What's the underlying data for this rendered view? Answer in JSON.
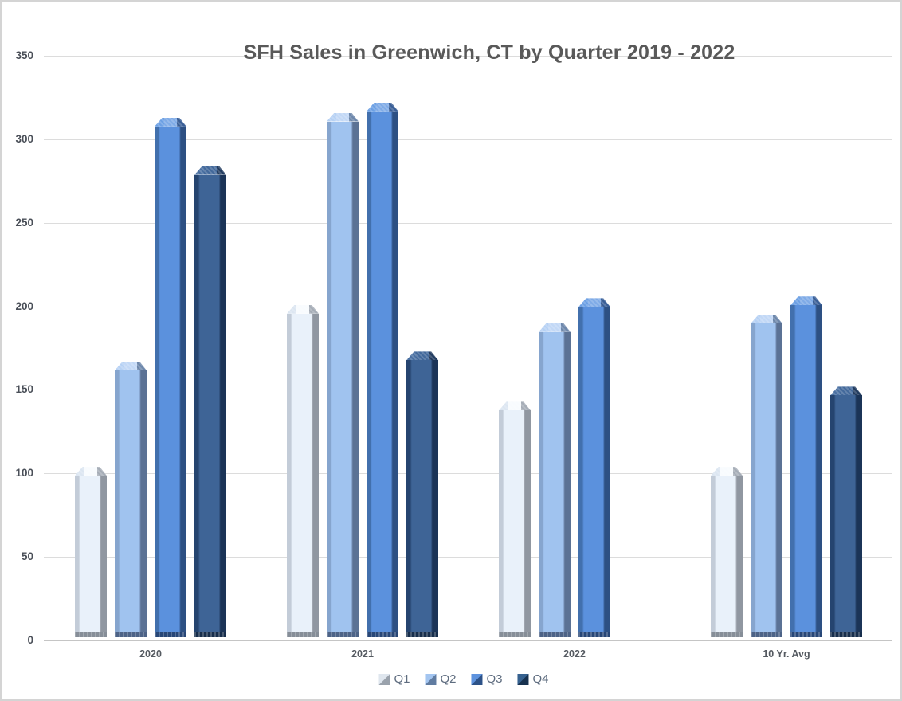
{
  "chart_data": {
    "type": "bar",
    "title": "SFH Sales in Greenwich, CT by Quarter 2019 - 2022",
    "categories": [
      "2020",
      "2021",
      "2022",
      "10 Yr. Avg"
    ],
    "series": [
      {
        "name": "Q1",
        "values": [
          102,
          199,
          141,
          102
        ]
      },
      {
        "name": "Q2",
        "values": [
          165,
          314,
          188,
          193
        ]
      },
      {
        "name": "Q3",
        "values": [
          311,
          320,
          203,
          204
        ]
      },
      {
        "name": "Q4",
        "values": [
          282,
          171,
          null,
          150
        ]
      }
    ],
    "xlabel": "",
    "ylabel": "",
    "ylim": [
      0,
      350
    ],
    "yticks": [
      0,
      50,
      100,
      150,
      200,
      250,
      300,
      350
    ],
    "grid": true,
    "legend_position": "bottom",
    "colors": {
      "gridline": "#dcdcdc",
      "axis_line": "#c5c5c5",
      "title_text": "#595959",
      "tick_text": "#4a4f58",
      "legend_text": "#5e6c7f",
      "series": {
        "Q1": {
          "face": "#e9f1fa",
          "left": "#c3ccd8",
          "right": "#9097a1",
          "cap_left": "#dce6f1",
          "cap_mid": "#f8fbfe",
          "cap_right": "#a6adb7",
          "base": "#868e98",
          "legend_light": "#dfe6ee",
          "legend_dark": "#9aa2ac"
        },
        "Q2": {
          "face": "#a0c3ef",
          "left": "#86a5ce",
          "right": "#5b7295",
          "cap_left": "#b6d1f4",
          "cap_mid": "#c2d8f6",
          "cap_right": "#6d87ab",
          "base": "#4d6387",
          "legend_light": "#a3c5f0",
          "legend_dark": "#607ca1"
        },
        "Q3": {
          "face": "#5b91dd",
          "left": "#4270ad",
          "right": "#2d5083",
          "cap_left": "#6ca0e4",
          "cap_mid": "#7fabe7",
          "cap_right": "#3a5f97",
          "base": "#284777",
          "legend_light": "#5e93de",
          "legend_dark": "#2d5288"
        },
        "Q4": {
          "face": "#3e6496",
          "left": "#25446f",
          "right": "#1b3457",
          "cap_left": "#4a70a2",
          "cap_mid": "#43699b",
          "cap_right": "#223c60",
          "base": "#172e4c",
          "legend_light": "#36618f",
          "legend_dark": "#17314f"
        }
      }
    }
  }
}
